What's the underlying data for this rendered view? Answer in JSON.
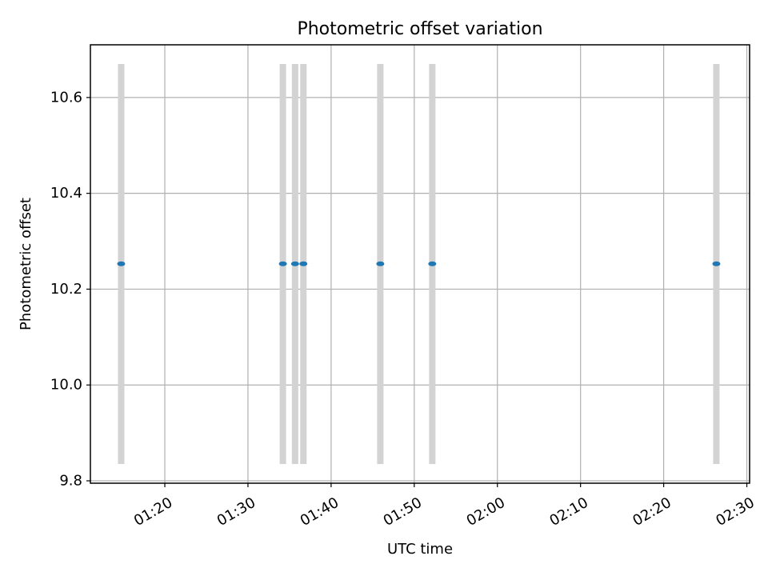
{
  "chart_data": {
    "type": "scatter",
    "title": "Photometric offset variation",
    "xlabel": "UTC time",
    "ylabel": "Photometric offset",
    "xlim": [
      "01:11:03",
      "02:30:20"
    ],
    "ylim": [
      9.795,
      10.71
    ],
    "x_ticks": [
      "01:20",
      "01:30",
      "01:40",
      "01:50",
      "02:00",
      "02:10",
      "02:20",
      "02:30"
    ],
    "y_ticks": [
      "9.8",
      "10.0",
      "10.2",
      "10.4",
      "10.6"
    ],
    "grid": true,
    "series": [
      {
        "color": "#1f77b4",
        "errorbar_color": "#d3d3d3",
        "points": [
          {
            "x": "01:14:45",
            "y": 10.253,
            "ylow": 9.835,
            "yhigh": 10.67
          },
          {
            "x": "01:34:12",
            "y": 10.253,
            "ylow": 9.835,
            "yhigh": 10.67
          },
          {
            "x": "01:35:40",
            "y": 10.253,
            "ylow": 9.835,
            "yhigh": 10.67
          },
          {
            "x": "01:36:40",
            "y": 10.253,
            "ylow": 9.835,
            "yhigh": 10.67
          },
          {
            "x": "01:45:55",
            "y": 10.253,
            "ylow": 9.835,
            "yhigh": 10.67
          },
          {
            "x": "01:52:10",
            "y": 10.253,
            "ylow": 9.835,
            "yhigh": 10.67
          },
          {
            "x": "02:26:20",
            "y": 10.253,
            "ylow": 9.835,
            "yhigh": 10.67
          }
        ]
      }
    ]
  }
}
